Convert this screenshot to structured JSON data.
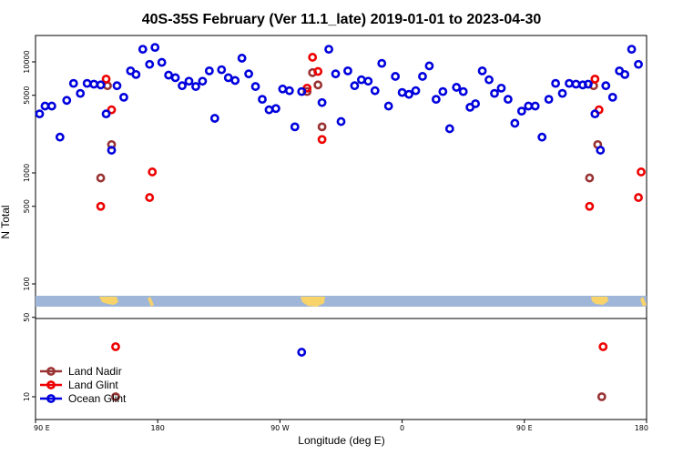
{
  "chart_data": {
    "type": "scatter",
    "title": "40S-35S February (Ver 11.1_late)   2019-01-01 to 2023-04-30",
    "xlabel": "Longitude (deg E)",
    "ylabel": "N Total",
    "y_scale": "log",
    "x_ticks": [
      {
        "value": 90,
        "label": "90 E"
      },
      {
        "value": 180,
        "label": "180"
      },
      {
        "value": 270,
        "label": "90 W"
      },
      {
        "value": 360,
        "label": "0"
      },
      {
        "value": 450,
        "label": "90 E"
      },
      {
        "value": 540,
        "label": "180"
      }
    ],
    "y_ticks": [
      {
        "value": 10,
        "label": "10"
      },
      {
        "value": 50,
        "label": "50"
      },
      {
        "value": 100,
        "label": "100"
      },
      {
        "value": 500,
        "label": "500"
      },
      {
        "value": 1000,
        "label": "1000"
      },
      {
        "value": 5000,
        "label": "5000"
      },
      {
        "value": 10000,
        "label": "10000"
      }
    ],
    "legend_position": "bottom-left",
    "series": [
      {
        "name": "Land Nadir",
        "color": "#993333",
        "points": [
          {
            "x": 138,
            "y": 900
          },
          {
            "x": 143,
            "y": 6100
          },
          {
            "x": 146,
            "y": 1800
          },
          {
            "x": 149,
            "y": 10
          },
          {
            "x": 290,
            "y": 5400
          },
          {
            "x": 294,
            "y": 8000
          },
          {
            "x": 298,
            "y": 6200
          },
          {
            "x": 301,
            "y": 2600
          },
          {
            "x": 498,
            "y": 900
          },
          {
            "x": 501,
            "y": 6100
          },
          {
            "x": 504,
            "y": 1800
          },
          {
            "x": 507,
            "y": 10
          }
        ]
      },
      {
        "name": "Land Glint",
        "color": "#ee0000",
        "points": [
          {
            "x": 138,
            "y": 500
          },
          {
            "x": 142,
            "y": 7000
          },
          {
            "x": 146,
            "y": 3700
          },
          {
            "x": 149,
            "y": 28
          },
          {
            "x": 174,
            "y": 600
          },
          {
            "x": 176,
            "y": 1020
          },
          {
            "x": 290,
            "y": 5800
          },
          {
            "x": 294,
            "y": 11000
          },
          {
            "x": 298,
            "y": 8200
          },
          {
            "x": 301,
            "y": 2000
          },
          {
            "x": 498,
            "y": 500
          },
          {
            "x": 502,
            "y": 7000
          },
          {
            "x": 505,
            "y": 3700
          },
          {
            "x": 508,
            "y": 28
          },
          {
            "x": 534,
            "y": 600
          },
          {
            "x": 536,
            "y": 1020
          }
        ]
      },
      {
        "name": "Ocean Glint",
        "color": "#0000dd",
        "points": [
          {
            "x": 93,
            "y": 3400
          },
          {
            "x": 97,
            "y": 4000
          },
          {
            "x": 102,
            "y": 4000
          },
          {
            "x": 108,
            "y": 2100
          },
          {
            "x": 113,
            "y": 4500
          },
          {
            "x": 118,
            "y": 6400
          },
          {
            "x": 123,
            "y": 5200
          },
          {
            "x": 128,
            "y": 6400
          },
          {
            "x": 133,
            "y": 6300
          },
          {
            "x": 138,
            "y": 6200
          },
          {
            "x": 142,
            "y": 3400
          },
          {
            "x": 146,
            "y": 1600
          },
          {
            "x": 150,
            "y": 6100
          },
          {
            "x": 155,
            "y": 4800
          },
          {
            "x": 160,
            "y": 8300
          },
          {
            "x": 164,
            "y": 7700
          },
          {
            "x": 169,
            "y": 13000
          },
          {
            "x": 174,
            "y": 9500
          },
          {
            "x": 178,
            "y": 13500
          },
          {
            "x": 183,
            "y": 9900
          },
          {
            "x": 188,
            "y": 7600
          },
          {
            "x": 193,
            "y": 7200
          },
          {
            "x": 198,
            "y": 6100
          },
          {
            "x": 203,
            "y": 6700
          },
          {
            "x": 208,
            "y": 6000
          },
          {
            "x": 213,
            "y": 6700
          },
          {
            "x": 218,
            "y": 8300
          },
          {
            "x": 222,
            "y": 3100
          },
          {
            "x": 227,
            "y": 8500
          },
          {
            "x": 232,
            "y": 7200
          },
          {
            "x": 237,
            "y": 6800
          },
          {
            "x": 242,
            "y": 10800
          },
          {
            "x": 247,
            "y": 7800
          },
          {
            "x": 252,
            "y": 6000
          },
          {
            "x": 257,
            "y": 4600
          },
          {
            "x": 262,
            "y": 3700
          },
          {
            "x": 267,
            "y": 3800
          },
          {
            "x": 272,
            "y": 5700
          },
          {
            "x": 277,
            "y": 5500
          },
          {
            "x": 281,
            "y": 2600
          },
          {
            "x": 286,
            "y": 5400
          },
          {
            "x": 301,
            "y": 4300
          },
          {
            "x": 306,
            "y": 13000
          },
          {
            "x": 311,
            "y": 7800
          },
          {
            "x": 315,
            "y": 2900
          },
          {
            "x": 320,
            "y": 8300
          },
          {
            "x": 325,
            "y": 6100
          },
          {
            "x": 330,
            "y": 6900
          },
          {
            "x": 335,
            "y": 6700
          },
          {
            "x": 340,
            "y": 5500
          },
          {
            "x": 345,
            "y": 9700
          },
          {
            "x": 350,
            "y": 4000
          },
          {
            "x": 355,
            "y": 7400
          },
          {
            "x": 360,
            "y": 5300
          },
          {
            "x": 365,
            "y": 5100
          },
          {
            "x": 370,
            "y": 5500
          },
          {
            "x": 375,
            "y": 7400
          },
          {
            "x": 380,
            "y": 9200
          },
          {
            "x": 385,
            "y": 4600
          },
          {
            "x": 390,
            "y": 5400
          },
          {
            "x": 395,
            "y": 2500
          },
          {
            "x": 400,
            "y": 5900
          },
          {
            "x": 405,
            "y": 5400
          },
          {
            "x": 410,
            "y": 3900
          },
          {
            "x": 414,
            "y": 4200
          },
          {
            "x": 419,
            "y": 8300
          },
          {
            "x": 424,
            "y": 6900
          },
          {
            "x": 428,
            "y": 5200
          },
          {
            "x": 433,
            "y": 5800
          },
          {
            "x": 438,
            "y": 4600
          },
          {
            "x": 443,
            "y": 2800
          },
          {
            "x": 448,
            "y": 3600
          },
          {
            "x": 453,
            "y": 4000
          },
          {
            "x": 458,
            "y": 4000
          },
          {
            "x": 463,
            "y": 2100
          },
          {
            "x": 468,
            "y": 4600
          },
          {
            "x": 473,
            "y": 6400
          },
          {
            "x": 478,
            "y": 5200
          },
          {
            "x": 483,
            "y": 6400
          },
          {
            "x": 488,
            "y": 6300
          },
          {
            "x": 493,
            "y": 6200
          },
          {
            "x": 497,
            "y": 6300
          },
          {
            "x": 502,
            "y": 3400
          },
          {
            "x": 506,
            "y": 1600
          },
          {
            "x": 510,
            "y": 6100
          },
          {
            "x": 515,
            "y": 4800
          },
          {
            "x": 520,
            "y": 8300
          },
          {
            "x": 524,
            "y": 7700
          },
          {
            "x": 529,
            "y": 13000
          },
          {
            "x": 534,
            "y": 9500
          },
          {
            "x": 286,
            "y": 25
          }
        ]
      }
    ]
  }
}
